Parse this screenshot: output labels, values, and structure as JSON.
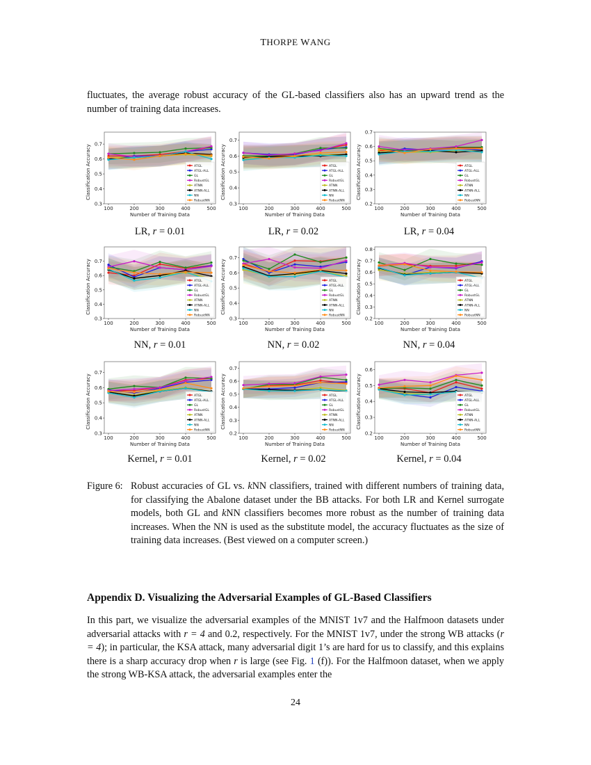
{
  "header": {
    "first_a": "T",
    "rest_a": "HORPE",
    "first_b": "W",
    "rest_b": "ANG"
  },
  "intro_text": "fluctuates, the average robust accuracy of the GL-based classifiers also has an upward trend as the number of training data increases.",
  "legend_labels": [
    "ATGL",
    "ATGL-ALL",
    "GL",
    "RobustGL",
    "ATNN",
    "ATNN-ALL",
    "NN",
    "RobustNN"
  ],
  "series_colors": [
    "#e8201c",
    "#1f1fe0",
    "#1f8a1f",
    "#c81fc8",
    "#bcbd22",
    "#000000",
    "#17becf",
    "#ff8c1a"
  ],
  "chart_data": [
    {
      "type": "line",
      "caption_method": "LR",
      "caption_r": "0.01",
      "xlabel": "Number of Training Data",
      "ylabel": "Classification Accuracy",
      "x": [
        100,
        200,
        300,
        400,
        500
      ],
      "ylim": [
        0.3,
        0.78
      ],
      "yticks": [
        0.3,
        0.4,
        0.5,
        0.6,
        0.7
      ],
      "band": 0.07,
      "legend": "lower-right",
      "series": [
        [
          0.62,
          0.62,
          0.63,
          0.65,
          0.68
        ],
        [
          0.6,
          0.62,
          0.62,
          0.65,
          0.665
        ],
        [
          0.635,
          0.64,
          0.645,
          0.67,
          0.675
        ],
        [
          0.635,
          0.615,
          0.62,
          0.65,
          0.685
        ],
        [
          0.61,
          0.61,
          0.62,
          0.63,
          0.62
        ],
        [
          0.6,
          0.61,
          0.62,
          0.64,
          0.63
        ],
        [
          0.595,
          0.61,
          0.62,
          0.65,
          0.6
        ],
        [
          0.61,
          0.595,
          0.62,
          0.635,
          0.625
        ]
      ]
    },
    {
      "type": "line",
      "caption_method": "LR",
      "caption_r": "0.02",
      "xlabel": "Number of Training Data",
      "ylabel": "Classification Accuracy",
      "x": [
        100,
        200,
        300,
        400,
        500
      ],
      "ylim": [
        0.3,
        0.75
      ],
      "yticks": [
        0.3,
        0.4,
        0.5,
        0.6,
        0.7
      ],
      "band": 0.07,
      "legend": "lower-right",
      "series": [
        [
          0.6,
          0.6,
          0.61,
          0.64,
          0.67
        ],
        [
          0.62,
          0.61,
          0.61,
          0.64,
          0.655
        ],
        [
          0.6,
          0.6,
          0.615,
          0.65,
          0.65
        ],
        [
          0.62,
          0.605,
          0.615,
          0.635,
          0.68
        ],
        [
          0.58,
          0.59,
          0.595,
          0.61,
          0.61
        ],
        [
          0.59,
          0.595,
          0.6,
          0.6,
          0.61
        ],
        [
          0.575,
          0.59,
          0.59,
          0.605,
          0.6
        ],
        [
          0.595,
          0.585,
          0.6,
          0.62,
          0.625
        ]
      ]
    },
    {
      "type": "line",
      "caption_method": "LR",
      "caption_r": "0.04",
      "xlabel": "Number of Training Data",
      "ylabel": "Classification Accuracy",
      "x": [
        100,
        200,
        300,
        400,
        500
      ],
      "ylim": [
        0.2,
        0.7
      ],
      "yticks": [
        0.2,
        0.3,
        0.4,
        0.5,
        0.6,
        0.7
      ],
      "band": 0.08,
      "legend": "lower-right",
      "series": [
        [
          0.57,
          0.575,
          0.58,
          0.59,
          0.59
        ],
        [
          0.555,
          0.585,
          0.575,
          0.585,
          0.575
        ],
        [
          0.585,
          0.57,
          0.585,
          0.595,
          0.595
        ],
        [
          0.6,
          0.575,
          0.585,
          0.6,
          0.645
        ],
        [
          0.565,
          0.56,
          0.56,
          0.57,
          0.57
        ],
        [
          0.555,
          0.565,
          0.57,
          0.56,
          0.57
        ],
        [
          0.545,
          0.565,
          0.565,
          0.575,
          0.56
        ],
        [
          0.58,
          0.555,
          0.58,
          0.585,
          0.585
        ]
      ]
    },
    {
      "type": "line",
      "caption_method": "NN",
      "caption_r": "0.01",
      "xlabel": "Number of Training Data",
      "ylabel": "Classification Accuracy",
      "x": [
        100,
        200,
        300,
        400,
        500
      ],
      "ylim": [
        0.3,
        0.8
      ],
      "yticks": [
        0.3,
        0.4,
        0.5,
        0.6,
        0.7
      ],
      "band": 0.08,
      "legend": "lower-right",
      "series": [
        [
          0.62,
          0.6,
          0.68,
          0.65,
          0.67
        ],
        [
          0.675,
          0.59,
          0.655,
          0.64,
          0.67
        ],
        [
          0.66,
          0.63,
          0.695,
          0.655,
          0.69
        ],
        [
          0.66,
          0.7,
          0.655,
          0.64,
          0.665
        ],
        [
          0.64,
          0.58,
          0.6,
          0.62,
          0.58
        ],
        [
          0.64,
          0.58,
          0.6,
          0.635,
          0.595
        ],
        [
          0.645,
          0.565,
          0.585,
          0.625,
          0.56
        ],
        [
          0.65,
          0.62,
          0.61,
          0.625,
          0.62
        ]
      ]
    },
    {
      "type": "line",
      "caption_method": "NN",
      "caption_r": "0.02",
      "xlabel": "Number of Training Data",
      "ylabel": "Classification Accuracy",
      "x": [
        100,
        200,
        300,
        400,
        500
      ],
      "ylim": [
        0.3,
        0.77
      ],
      "yticks": [
        0.3,
        0.4,
        0.5,
        0.6,
        0.7
      ],
      "band": 0.09,
      "legend": "lower-right",
      "series": [
        [
          0.66,
          0.605,
          0.68,
          0.675,
          0.7
        ],
        [
          0.69,
          0.6,
          0.655,
          0.64,
          0.67
        ],
        [
          0.68,
          0.625,
          0.72,
          0.67,
          0.7
        ],
        [
          0.66,
          0.69,
          0.635,
          0.63,
          0.68
        ],
        [
          0.62,
          0.58,
          0.59,
          0.61,
          0.58
        ],
        [
          0.64,
          0.58,
          0.595,
          0.615,
          0.595
        ],
        [
          0.63,
          0.575,
          0.575,
          0.61,
          0.57
        ],
        [
          0.65,
          0.61,
          0.6,
          0.62,
          0.615
        ]
      ]
    },
    {
      "type": "line",
      "caption_method": "NN",
      "caption_r": "0.04",
      "xlabel": "Number of Training Data",
      "ylabel": "Classification Accuracy",
      "x": [
        100,
        200,
        300,
        400,
        500
      ],
      "ylim": [
        0.2,
        0.82
      ],
      "yticks": [
        0.2,
        0.3,
        0.4,
        0.5,
        0.6,
        0.7,
        0.8
      ],
      "band": 0.09,
      "legend": "lower-right",
      "series": [
        [
          0.655,
          0.67,
          0.655,
          0.655,
          0.69
        ],
        [
          0.64,
          0.575,
          0.645,
          0.635,
          0.695
        ],
        [
          0.685,
          0.62,
          0.715,
          0.675,
          0.665
        ],
        [
          0.66,
          0.68,
          0.645,
          0.64,
          0.685
        ],
        [
          0.62,
          0.59,
          0.6,
          0.6,
          0.59
        ],
        [
          0.635,
          0.58,
          0.59,
          0.6,
          0.59
        ],
        [
          0.64,
          0.575,
          0.59,
          0.6,
          0.55
        ],
        [
          0.66,
          0.67,
          0.615,
          0.605,
          0.6
        ]
      ]
    },
    {
      "type": "line",
      "caption_method": "Kernel",
      "caption_r": "0.01",
      "xlabel": "Number of Training Data",
      "ylabel": "Classification Accuracy",
      "x": [
        100,
        200,
        300,
        400,
        500
      ],
      "ylim": [
        0.3,
        0.77
      ],
      "yticks": [
        0.3,
        0.4,
        0.5,
        0.6,
        0.7
      ],
      "band": 0.07,
      "legend": "lower-right",
      "series": [
        [
          0.58,
          0.58,
          0.6,
          0.65,
          0.66
        ],
        [
          0.585,
          0.565,
          0.595,
          0.635,
          0.65
        ],
        [
          0.59,
          0.61,
          0.6,
          0.665,
          0.66
        ],
        [
          0.58,
          0.59,
          0.6,
          0.645,
          0.67
        ],
        [
          0.57,
          0.55,
          0.58,
          0.6,
          0.575
        ],
        [
          0.57,
          0.545,
          0.575,
          0.595,
          0.575
        ],
        [
          0.565,
          0.535,
          0.575,
          0.595,
          0.57
        ],
        [
          0.575,
          0.57,
          0.585,
          0.63,
          0.595
        ]
      ]
    },
    {
      "type": "line",
      "caption_method": "Kernel",
      "caption_r": "0.02",
      "xlabel": "Number of Training Data",
      "ylabel": "Classification Accuracy",
      "x": [
        100,
        200,
        300,
        400,
        500
      ],
      "ylim": [
        0.2,
        0.75
      ],
      "yticks": [
        0.2,
        0.3,
        0.4,
        0.5,
        0.6,
        0.7
      ],
      "band": 0.07,
      "legend": "lower-right",
      "series": [
        [
          0.54,
          0.565,
          0.57,
          0.605,
          0.585
        ],
        [
          0.54,
          0.54,
          0.55,
          0.59,
          0.595
        ],
        [
          0.54,
          0.575,
          0.575,
          0.63,
          0.61
        ],
        [
          0.57,
          0.58,
          0.585,
          0.635,
          0.65
        ],
        [
          0.54,
          0.525,
          0.53,
          0.55,
          0.53
        ],
        [
          0.54,
          0.535,
          0.53,
          0.535,
          0.52
        ],
        [
          0.54,
          0.525,
          0.525,
          0.535,
          0.525
        ],
        [
          0.545,
          0.56,
          0.565,
          0.59,
          0.58
        ]
      ]
    },
    {
      "type": "line",
      "caption_method": "Kernel",
      "caption_r": "0.04",
      "xlabel": "Number of Training Data",
      "ylabel": "Classification Accuracy",
      "x": [
        100,
        200,
        300,
        400,
        500
      ],
      "ylim": [
        0.2,
        0.65
      ],
      "yticks": [
        0.2,
        0.3,
        0.4,
        0.5,
        0.6
      ],
      "band": 0.06,
      "legend": "lower-right",
      "series": [
        [
          0.485,
          0.48,
          0.455,
          0.52,
          0.48
        ],
        [
          0.485,
          0.445,
          0.425,
          0.49,
          0.465
        ],
        [
          0.48,
          0.485,
          0.48,
          0.535,
          0.5
        ],
        [
          0.505,
          0.535,
          0.52,
          0.565,
          0.58
        ],
        [
          0.475,
          0.45,
          0.445,
          0.46,
          0.455
        ],
        [
          0.48,
          0.46,
          0.455,
          0.465,
          0.455
        ],
        [
          0.475,
          0.44,
          0.445,
          0.46,
          0.46
        ],
        [
          0.485,
          0.495,
          0.5,
          0.56,
          0.535
        ]
      ]
    }
  ],
  "figure_caption": {
    "label": "Figure 6:",
    "part1": "Robust accuracies of GL vs. ",
    "k1": "k",
    "part2": "NN classifiers, trained with different numbers of training data, for classifying the Abalone dataset under the BB attacks. For both LR and Kernel surrogate models, both GL and ",
    "k2": "k",
    "part3": "NN classifiers becomes more robust as the number of training data increases. When the NN is used as the substitute model, the accuracy fluctuates as the size of training data increases. (Best viewed on a computer screen.)"
  },
  "appendix": {
    "heading": "Appendix D.  Visualizing the Adversarial Examples of GL-Based Classifiers",
    "p1": "In this part, we visualize the adversarial examples of the MNIST 1v7 and the Halfmoon datasets under adversarial attacks with ",
    "r_eq_4": "r = 4",
    "p2": " and 0.2, respectively. For the MNIST 1v7, under the strong WB attacks (",
    "r_eq_4b": "r = 4",
    "p3": "); in particular, the KSA attack, many adversarial digit 1’s are hard for us to classify, and this explains there is a sharp accuracy drop when ",
    "r": "r",
    "p4": " is large (see Fig. ",
    "fig_ref": "1",
    "p5": " (f)). For the Halfmoon dataset, when we apply the strong WB-KSA attack, the adversarial examples enter the"
  },
  "page_number": "24"
}
